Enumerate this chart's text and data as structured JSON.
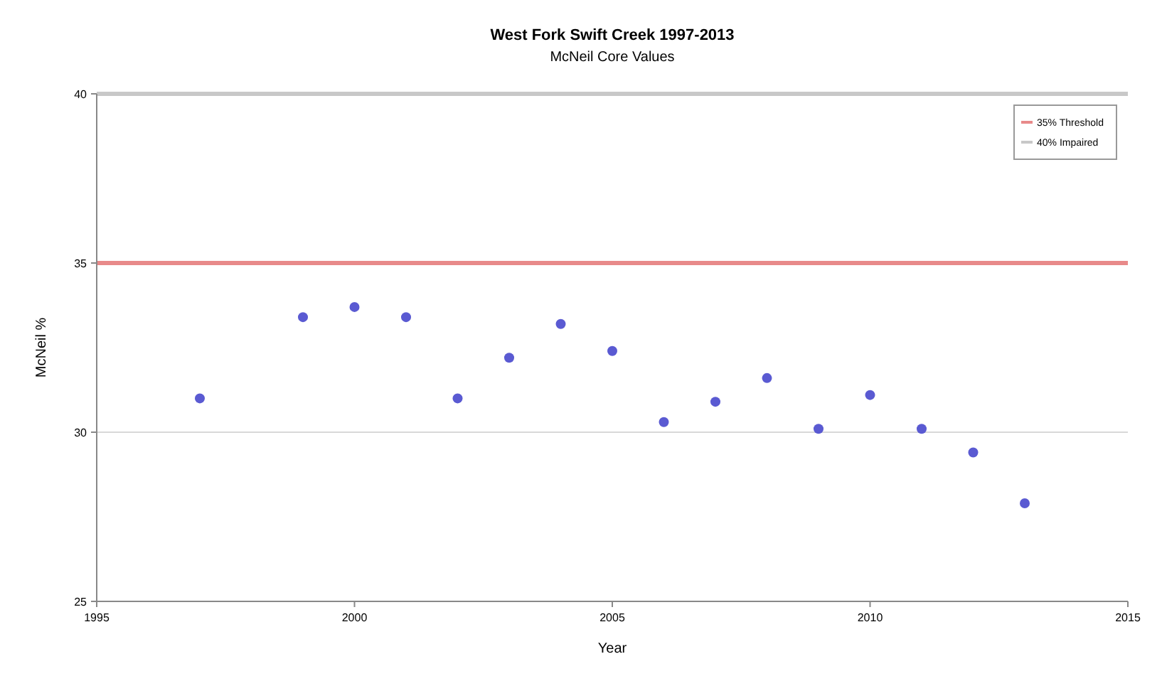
{
  "chart_data": {
    "type": "scatter",
    "title": "West Fork Swift Creek 1997-2013",
    "subtitle": "McNeil Core Values",
    "xlabel": "Year",
    "ylabel": "McNeil %",
    "x": [
      1997,
      1999,
      2000,
      2001,
      2002,
      2003,
      2004,
      2005,
      2006,
      2007,
      2008,
      2009,
      2010,
      2011,
      2012,
      2013
    ],
    "series": [
      {
        "color": "#5a5ad2",
        "values": [
          31.0,
          33.4,
          33.7,
          33.4,
          31.0,
          32.2,
          33.2,
          32.4,
          30.3,
          30.9,
          31.6,
          30.1,
          31.1,
          30.1,
          29.4,
          27.9
        ]
      }
    ],
    "xlim": [
      1995,
      2015
    ],
    "xticks": [
      1995,
      2000,
      2005,
      2010,
      2015
    ],
    "ylim": [
      25,
      40
    ],
    "yticks": [
      25,
      30,
      35,
      40
    ],
    "ref_lines": [
      {
        "axis": "y",
        "value": 35,
        "label": "35% Threshold",
        "color": "#e88a8a"
      },
      {
        "axis": "y",
        "value": 40,
        "label": "40% Impaired",
        "color": "#c8c8c8"
      },
      {
        "axis": "y",
        "value": 30,
        "color": "#d8d8d8"
      }
    ],
    "legend": "top right",
    "marker": "circle"
  }
}
